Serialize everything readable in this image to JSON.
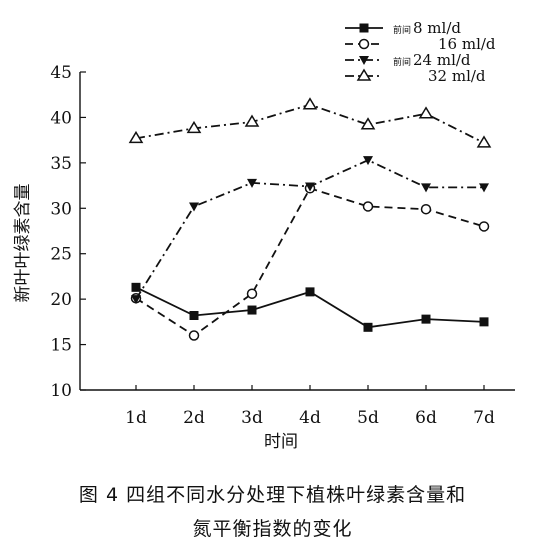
{
  "chart_data": {
    "type": "line",
    "xlabel": "时间",
    "ylabel": "新叶叶绿素含量",
    "categories": [
      "1d",
      "2d",
      "3d",
      "4d",
      "5d",
      "6d",
      "7d"
    ],
    "ylim": [
      10,
      45
    ],
    "yticks": [
      10,
      15,
      20,
      25,
      30,
      35,
      40,
      45
    ],
    "grid": false,
    "legend_position": "top-right",
    "series": [
      {
        "name": "8 ml/d",
        "legend_prefix": "前间",
        "values": [
          21.3,
          18.2,
          18.8,
          20.8,
          16.9,
          17.8,
          17.5
        ],
        "marker": "filled-square",
        "dash": "solid",
        "color": "#111111"
      },
      {
        "name": "16 ml/d",
        "legend_prefix": "",
        "values": [
          20.1,
          16.0,
          20.6,
          32.2,
          30.2,
          29.9,
          28.0
        ],
        "marker": "open-circle",
        "dash": "dashed",
        "color": "#111111"
      },
      {
        "name": "24 ml/d",
        "legend_prefix": "前间",
        "values": [
          20.0,
          30.2,
          32.8,
          32.4,
          35.3,
          32.3,
          32.3
        ],
        "marker": "filled-triangle",
        "dash": "dash-dot",
        "color": "#111111"
      },
      {
        "name": "32 ml/d",
        "legend_prefix": "",
        "values": [
          37.7,
          38.8,
          39.5,
          41.4,
          39.2,
          40.4,
          37.2
        ],
        "marker": "open-triangle",
        "dash": "dash-dot",
        "color": "#111111"
      }
    ]
  },
  "caption": {
    "line1": "图 4  四组不同水分处理下植株叶绿素含量和",
    "line2": "氮平衡指数的变化"
  }
}
